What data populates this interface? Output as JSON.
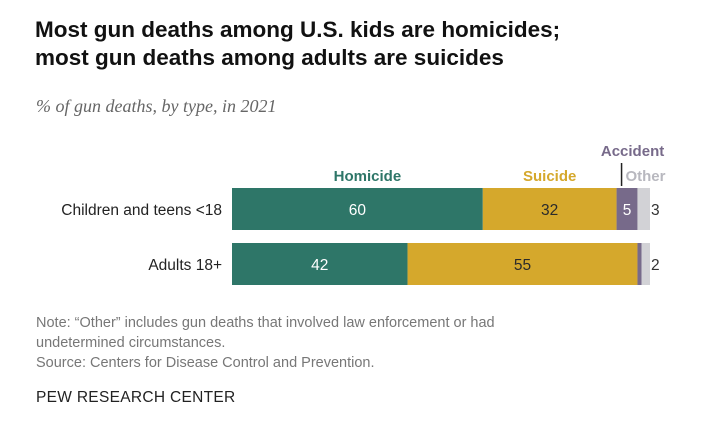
{
  "title_lines": [
    "Most gun deaths among U.S. kids are homicides;",
    "most gun deaths among adults are suicides"
  ],
  "subtitle": "% of gun deaths, by type, in 2021",
  "note": {
    "line1": "Note: “Other” includes gun deaths that involved law enforcement or had",
    "line2": "undetermined circumstances.",
    "source": "Source: Centers for Disease Control and Prevention."
  },
  "brand": "PEW RESEARCH CENTER",
  "chart_data": {
    "type": "bar",
    "orientation": "horizontal",
    "stacked": true,
    "categories": [
      "Children and teens <18",
      "Adults 18+"
    ],
    "series": [
      {
        "name": "Homicide",
        "color": "#2e7668",
        "values": [
          60,
          42
        ],
        "labels": [
          "60",
          "42"
        ]
      },
      {
        "name": "Suicide",
        "color": "#d5a82c",
        "values": [
          32,
          55
        ],
        "labels": [
          "32",
          "55"
        ]
      },
      {
        "name": "Accident",
        "color": "#776a8a",
        "values": [
          5,
          1
        ],
        "labels": [
          "5",
          ""
        ]
      },
      {
        "name": "Other",
        "color": "#d2d2d6",
        "values": [
          3,
          2
        ],
        "labels": [
          "3",
          "2"
        ]
      }
    ],
    "xlim": [
      0,
      100
    ],
    "legend": "inline-above-bars",
    "grid": false
  }
}
